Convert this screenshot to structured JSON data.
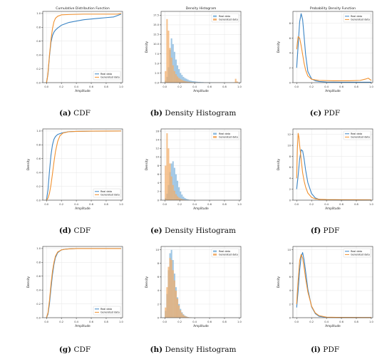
{
  "legend": {
    "real": "Real data",
    "generated": "Generated data"
  },
  "colors": {
    "real": "#3b84c4",
    "generated": "#f1912f",
    "real_fill": "#8fbde0",
    "generated_fill": "#f2ad6a",
    "grid": "#e6e6e6",
    "axis": "#333333"
  },
  "chart_data": [
    {
      "id": "a",
      "type": "line",
      "caption_letter": "(a)",
      "caption_text": "CDF",
      "title": "Cumulative Distribution Function",
      "xlabel": "Amplitude",
      "ylabel": "",
      "xlim": [
        -0.05,
        1.02
      ],
      "ylim": [
        0,
        1.03
      ],
      "xticks": [
        0,
        0.2,
        0.4,
        0.6,
        0.8,
        1.0
      ],
      "xtick_labels": [
        "0.0",
        "0.2",
        "0.4",
        "0.6",
        "0.8",
        "1.0"
      ],
      "yticks": [
        0,
        0.2,
        0.4,
        0.6,
        0.8,
        1.0
      ],
      "ytick_labels": [
        "0.0",
        "0.2",
        "0.4",
        "0.6",
        "0.8",
        "1.0"
      ],
      "grid": true,
      "legend_position": "lower-right",
      "series": [
        {
          "name": "Real data",
          "key": "real",
          "x": [
            0,
            0.02,
            0.04,
            0.06,
            0.08,
            0.1,
            0.12,
            0.15,
            0.2,
            0.3,
            0.4,
            0.5,
            0.6,
            0.7,
            0.8,
            0.9,
            0.95,
            1.0
          ],
          "y": [
            0.0,
            0.12,
            0.38,
            0.58,
            0.68,
            0.73,
            0.76,
            0.79,
            0.83,
            0.87,
            0.89,
            0.91,
            0.92,
            0.93,
            0.94,
            0.95,
            0.97,
            0.99
          ]
        },
        {
          "name": "Generated data",
          "key": "generated",
          "x": [
            0,
            0.01,
            0.02,
            0.04,
            0.06,
            0.08,
            0.1,
            0.12,
            0.15,
            0.2,
            0.3,
            0.5,
            0.8,
            0.95,
            1.0
          ],
          "y": [
            0.0,
            0.05,
            0.15,
            0.4,
            0.62,
            0.78,
            0.88,
            0.93,
            0.96,
            0.98,
            0.985,
            0.99,
            0.99,
            0.99,
            1.0
          ]
        }
      ]
    },
    {
      "id": "b",
      "type": "histogram",
      "caption_letter": "(b)",
      "caption_text": "Density Histogram",
      "title": "Density Histogram",
      "xlabel": "Amplitude",
      "ylabel": "Density",
      "xlim": [
        -0.05,
        1.02
      ],
      "ylim": [
        0,
        18.5
      ],
      "xticks": [
        0,
        0.2,
        0.4,
        0.6,
        0.8,
        1.0
      ],
      "xtick_labels": [
        "0.0",
        "0.2",
        "0.4",
        "0.6",
        "0.8",
        "1.0"
      ],
      "yticks": [
        0,
        2.5,
        5,
        7.5,
        10,
        12.5,
        15,
        17.5
      ],
      "ytick_labels": [
        "0.0",
        "2.5",
        "5.0",
        "7.5",
        "10.0",
        "12.5",
        "15.0",
        "17.5"
      ],
      "grid": true,
      "legend_position": "top-right",
      "bin_start": 0,
      "bin_width": 0.02,
      "series": [
        {
          "name": "Real data",
          "key": "real",
          "values": [
            0.5,
            1.5,
            4.0,
            8.5,
            11.5,
            10.0,
            8.0,
            6.0,
            4.5,
            3.5,
            2.5,
            2.0,
            1.5,
            1.2,
            1.0,
            0.8,
            0.6,
            0.5,
            0.4,
            0.35,
            0.3,
            0.25,
            0.2,
            0.2,
            0.15,
            0.15,
            0.1,
            0.1,
            0.1,
            0.1,
            0.08,
            0.08,
            0.06,
            0.06,
            0.05,
            0.05,
            0.05,
            0.04,
            0.04,
            0.04,
            0.03,
            0.03,
            0.03,
            0.03,
            0.03,
            0.02,
            0.02,
            0.02,
            0.02,
            0.02
          ]
        },
        {
          "name": "Generated data",
          "key": "generated",
          "values": [
            3.0,
            16.5,
            13.5,
            9.0,
            6.5,
            4.5,
            3.0,
            2.2,
            1.6,
            1.2,
            0.9,
            0.7,
            0.5,
            0.4,
            0.3,
            0.25,
            0.2,
            0.15,
            0.1,
            0.1,
            0.08,
            0.06,
            0.05,
            0.05,
            0.04,
            0.04,
            0.03,
            0.03,
            0.03,
            0.03,
            0.02,
            0.02,
            0.02,
            0.02,
            0.02,
            0.02,
            0.02,
            0.02,
            0.02,
            0.02,
            0.02,
            0.02,
            0.02,
            0.02,
            0.02,
            0.02,
            0.1,
            1.0,
            0.3,
            0.05
          ]
        }
      ]
    },
    {
      "id": "c",
      "type": "line",
      "caption_letter": "(c)",
      "caption_text": "PDF",
      "title": "Probability Density Function",
      "xlabel": "Amplitude",
      "ylabel": "Density",
      "xlim": [
        -0.05,
        1.02
      ],
      "ylim": [
        0,
        9.6
      ],
      "xticks": [
        0,
        0.2,
        0.4,
        0.6,
        0.8,
        1.0
      ],
      "xtick_labels": [
        "0.0",
        "0.2",
        "0.4",
        "0.6",
        "0.8",
        "1.0"
      ],
      "yticks": [
        0,
        2,
        4,
        6,
        8
      ],
      "ytick_labels": [
        "0",
        "2",
        "4",
        "6",
        "8"
      ],
      "grid": true,
      "legend_position": "top-right",
      "series": [
        {
          "name": "Real data",
          "key": "real",
          "x": [
            0,
            0.02,
            0.04,
            0.06,
            0.08,
            0.1,
            0.12,
            0.15,
            0.2,
            0.25,
            0.3,
            0.4,
            0.6,
            0.8,
            1.0
          ],
          "y": [
            2.0,
            5.0,
            8.2,
            9.3,
            8.5,
            6.2,
            3.8,
            1.5,
            0.5,
            0.25,
            0.15,
            0.08,
            0.05,
            0.05,
            0.05
          ]
        },
        {
          "name": "Generated data",
          "key": "generated",
          "x": [
            0,
            0.02,
            0.04,
            0.06,
            0.08,
            0.1,
            0.12,
            0.15,
            0.2,
            0.3,
            0.5,
            0.7,
            0.85,
            0.93,
            0.96,
            1.0
          ],
          "y": [
            4.5,
            6.2,
            6.0,
            5.0,
            3.8,
            2.6,
            1.7,
            0.9,
            0.45,
            0.3,
            0.25,
            0.25,
            0.3,
            0.5,
            0.6,
            0.3
          ]
        }
      ]
    },
    {
      "id": "d",
      "type": "line",
      "caption_letter": "(d)",
      "caption_text": "CDF",
      "title": "",
      "xlabel": "Amplitude",
      "ylabel": "Density",
      "xlim": [
        -0.05,
        1.02
      ],
      "ylim": [
        0,
        1.03
      ],
      "xticks": [
        0,
        0.2,
        0.4,
        0.6,
        0.8,
        1.0
      ],
      "xtick_labels": [
        "0.0",
        "0.2",
        "0.4",
        "0.6",
        "0.8",
        "1.0"
      ],
      "yticks": [
        0,
        0.2,
        0.4,
        0.6,
        0.8,
        1.0
      ],
      "ytick_labels": [
        "0.0",
        "0.2",
        "0.4",
        "0.6",
        "0.8",
        "1.0"
      ],
      "grid": true,
      "legend_position": "lower-right",
      "series": [
        {
          "name": "Real data",
          "key": "real",
          "x": [
            0,
            0.02,
            0.04,
            0.06,
            0.08,
            0.1,
            0.12,
            0.15,
            0.2,
            0.25,
            0.3,
            0.4,
            0.6,
            1.0
          ],
          "y": [
            0.0,
            0.15,
            0.42,
            0.65,
            0.8,
            0.88,
            0.92,
            0.95,
            0.97,
            0.98,
            0.99,
            0.995,
            0.998,
            1.0
          ]
        },
        {
          "name": "Generated data",
          "key": "generated",
          "x": [
            0,
            0.02,
            0.04,
            0.06,
            0.08,
            0.1,
            0.12,
            0.15,
            0.18,
            0.22,
            0.3,
            0.4,
            0.6,
            1.0
          ],
          "y": [
            0.0,
            0.03,
            0.1,
            0.22,
            0.38,
            0.55,
            0.7,
            0.85,
            0.93,
            0.97,
            0.99,
            0.995,
            0.998,
            1.0
          ]
        }
      ]
    },
    {
      "id": "e",
      "type": "histogram",
      "caption_letter": "(e)",
      "caption_text": "Density Histogram",
      "title": "",
      "xlabel": "Amplitude",
      "ylabel": "Density",
      "xlim": [
        -0.05,
        1.02
      ],
      "ylim": [
        0,
        16.5
      ],
      "xticks": [
        0,
        0.2,
        0.4,
        0.6,
        0.8,
        1.0
      ],
      "xtick_labels": [
        "0.0",
        "0.2",
        "0.4",
        "0.6",
        "0.8",
        "1.0"
      ],
      "yticks": [
        0,
        2,
        4,
        6,
        8,
        10,
        12,
        14,
        16
      ],
      "ytick_labels": [
        "0",
        "2",
        "4",
        "6",
        "8",
        "10",
        "12",
        "14",
        "16"
      ],
      "grid": true,
      "legend_position": "top-right",
      "bin_start": 0,
      "bin_width": 0.02,
      "series": [
        {
          "name": "Real data",
          "key": "real",
          "values": [
            0.5,
            1.5,
            3.5,
            6.5,
            8.5,
            9.0,
            7.5,
            6.0,
            4.5,
            3.0,
            2.0,
            1.3,
            0.8,
            0.5,
            0.3,
            0.2,
            0.1,
            0.06,
            0.04,
            0.02
          ]
        },
        {
          "name": "Generated data",
          "key": "generated",
          "values": [
            8.0,
            15.5,
            12.0,
            8.5,
            5.5,
            3.5,
            2.2,
            1.4,
            0.9,
            0.6,
            0.4,
            0.25,
            0.15,
            0.1,
            0.06,
            0.04,
            0.02,
            0.02,
            0.02,
            0.02
          ]
        }
      ]
    },
    {
      "id": "f",
      "type": "line",
      "caption_letter": "(f)",
      "caption_text": "PDF",
      "title": "",
      "xlabel": "Amplitude",
      "ylabel": "Density",
      "xlim": [
        -0.05,
        1.02
      ],
      "ylim": [
        0,
        13
      ],
      "xticks": [
        0,
        0.2,
        0.4,
        0.6,
        0.8,
        1.0
      ],
      "xtick_labels": [
        "0.0",
        "0.2",
        "0.4",
        "0.6",
        "0.8",
        "1.0"
      ],
      "yticks": [
        0,
        2,
        4,
        6,
        8,
        10,
        12
      ],
      "ytick_labels": [
        "0",
        "2",
        "4",
        "6",
        "8",
        "10",
        "12"
      ],
      "grid": true,
      "legend_position": "top-right",
      "series": [
        {
          "name": "Real data",
          "key": "real",
          "x": [
            0,
            0.02,
            0.04,
            0.06,
            0.08,
            0.1,
            0.12,
            0.15,
            0.2,
            0.25,
            0.3,
            0.4,
            0.6,
            1.0
          ],
          "y": [
            2.0,
            4.5,
            7.5,
            9.2,
            9.0,
            7.5,
            5.5,
            3.2,
            1.2,
            0.4,
            0.15,
            0.05,
            0.03,
            0.02
          ]
        },
        {
          "name": "Generated data",
          "key": "generated",
          "x": [
            0,
            0.01,
            0.02,
            0.03,
            0.04,
            0.06,
            0.08,
            0.1,
            0.12,
            0.15,
            0.2,
            0.25,
            0.3,
            0.4,
            0.6,
            1.0
          ],
          "y": [
            4.0,
            9.5,
            12.2,
            11.5,
            10.0,
            7.5,
            5.0,
            3.5,
            2.4,
            1.3,
            0.5,
            0.25,
            0.15,
            0.1,
            0.08,
            0.05
          ]
        }
      ]
    },
    {
      "id": "g",
      "type": "line",
      "caption_letter": "(g)",
      "caption_text": "CDF",
      "title": "",
      "xlabel": "Amplitude",
      "ylabel": "Density",
      "xlim": [
        -0.05,
        1.02
      ],
      "ylim": [
        0,
        1.03
      ],
      "xticks": [
        0,
        0.2,
        0.4,
        0.6,
        0.8,
        1.0
      ],
      "xtick_labels": [
        "0.0",
        "0.2",
        "0.4",
        "0.6",
        "0.8",
        "1.0"
      ],
      "yticks": [
        0,
        0.2,
        0.4,
        0.6,
        0.8,
        1.0
      ],
      "ytick_labels": [
        "0.0",
        "0.2",
        "0.4",
        "0.6",
        "0.8",
        "1.0"
      ],
      "grid": true,
      "legend_position": "lower-right",
      "series": [
        {
          "name": "Real data",
          "key": "real",
          "x": [
            0,
            0.02,
            0.04,
            0.06,
            0.08,
            0.1,
            0.12,
            0.15,
            0.2,
            0.25,
            0.3,
            0.4,
            1.0
          ],
          "y": [
            0.0,
            0.05,
            0.2,
            0.42,
            0.62,
            0.77,
            0.87,
            0.94,
            0.98,
            0.99,
            0.995,
            1.0,
            1.0
          ]
        },
        {
          "name": "Generated data",
          "key": "generated",
          "x": [
            0,
            0.02,
            0.04,
            0.06,
            0.08,
            0.1,
            0.12,
            0.15,
            0.2,
            0.25,
            0.3,
            0.4,
            1.0
          ],
          "y": [
            0.0,
            0.07,
            0.25,
            0.48,
            0.67,
            0.8,
            0.89,
            0.95,
            0.98,
            0.99,
            0.995,
            1.0,
            1.0
          ]
        }
      ]
    },
    {
      "id": "h",
      "type": "histogram",
      "caption_letter": "(h)",
      "caption_text": "Density Histogram",
      "title": "",
      "xlabel": "Amplitude",
      "ylabel": "Density",
      "xlim": [
        -0.05,
        1.02
      ],
      "ylim": [
        0,
        10.5
      ],
      "xticks": [
        0,
        0.2,
        0.4,
        0.6,
        0.8,
        1.0
      ],
      "xtick_labels": [
        "0.0",
        "0.2",
        "0.4",
        "0.6",
        "0.8",
        "1.0"
      ],
      "yticks": [
        0,
        2,
        4,
        6,
        8,
        10
      ],
      "ytick_labels": [
        "0",
        "2",
        "4",
        "6",
        "8",
        "10"
      ],
      "grid": true,
      "legend_position": "top-right",
      "bin_start": 0,
      "bin_width": 0.02,
      "series": [
        {
          "name": "Real data",
          "key": "real",
          "values": [
            1.0,
            3.5,
            7.0,
            9.5,
            10.0,
            8.5,
            6.5,
            4.5,
            3.0,
            2.0,
            1.3,
            0.8,
            0.5,
            0.3,
            0.2,
            0.1,
            0.06,
            0.04
          ]
        },
        {
          "name": "Generated data",
          "key": "generated",
          "values": [
            1.5,
            4.5,
            7.5,
            8.8,
            8.5,
            7.0,
            5.5,
            4.0,
            2.8,
            1.8,
            1.1,
            0.7,
            0.4,
            0.25,
            0.15,
            0.1,
            0.05,
            0.03
          ]
        }
      ]
    },
    {
      "id": "i",
      "type": "line",
      "caption_letter": "(i)",
      "caption_text": "PDF",
      "title": "",
      "xlabel": "Amplitude",
      "ylabel": "Density",
      "xlim": [
        -0.05,
        1.02
      ],
      "ylim": [
        0,
        10.5
      ],
      "xticks": [
        0,
        0.2,
        0.4,
        0.6,
        0.8,
        1.0
      ],
      "xtick_labels": [
        "0.0",
        "0.2",
        "0.4",
        "0.6",
        "0.8",
        "1.0"
      ],
      "yticks": [
        0,
        2,
        4,
        6,
        8,
        10
      ],
      "ytick_labels": [
        "0",
        "2",
        "4",
        "6",
        "8",
        "10"
      ],
      "grid": true,
      "legend_position": "top-right",
      "series": [
        {
          "name": "Real data",
          "key": "real",
          "x": [
            0,
            0.02,
            0.04,
            0.06,
            0.08,
            0.1,
            0.12,
            0.15,
            0.2,
            0.25,
            0.3,
            0.4,
            0.6,
            1.0
          ],
          "y": [
            1.5,
            4.0,
            7.0,
            9.0,
            9.6,
            8.5,
            6.8,
            4.2,
            1.6,
            0.6,
            0.2,
            0.06,
            0.03,
            0.02
          ]
        },
        {
          "name": "Generated data",
          "key": "generated",
          "x": [
            0,
            0.02,
            0.04,
            0.06,
            0.08,
            0.1,
            0.12,
            0.15,
            0.2,
            0.25,
            0.3,
            0.4,
            0.6,
            1.0
          ],
          "y": [
            2.0,
            5.5,
            8.4,
            9.3,
            8.8,
            7.4,
            5.8,
            3.8,
            1.7,
            0.7,
            0.3,
            0.08,
            0.03,
            0.02
          ]
        }
      ]
    }
  ]
}
